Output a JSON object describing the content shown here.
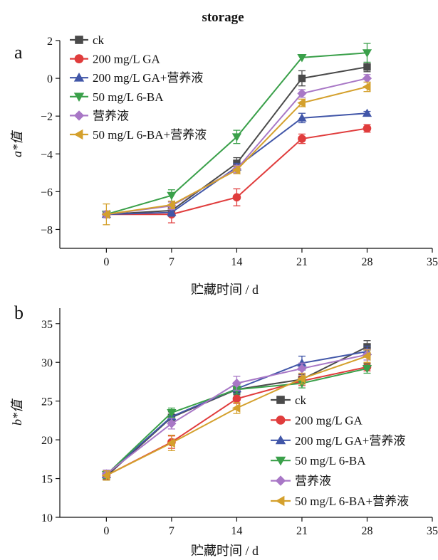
{
  "figure": {
    "title": "storage"
  },
  "series_styles": [
    {
      "name": "ck",
      "color": "#4a4a4a",
      "marker": "square"
    },
    {
      "name": "200 mg/L GA",
      "color": "#e03c3c",
      "marker": "circle"
    },
    {
      "name": "200 mg/L GA+营养液",
      "color": "#4156a8",
      "marker": "triangle-up"
    },
    {
      "name": "50 mg/L 6-BA",
      "color": "#3aa04a",
      "marker": "triangle-down"
    },
    {
      "name": "营养液",
      "color": "#a877c6",
      "marker": "diamond"
    },
    {
      "name": "50 mg/L 6-BA+营养液",
      "color": "#d4a02c",
      "marker": "triangle-left"
    }
  ],
  "chart_data": [
    {
      "type": "line",
      "panel_label": "a",
      "title": "storage",
      "xlabel": "贮藏时间 / d",
      "ylabel": "a*值",
      "x": [
        0,
        7,
        14,
        21,
        28
      ],
      "xlim": [
        -5,
        35
      ],
      "ylim": [
        -9,
        2
      ],
      "xticks": [
        0,
        7,
        14,
        21,
        28,
        35
      ],
      "yticks": [
        -8,
        -6,
        -4,
        -2,
        0,
        2
      ],
      "legend_position": "top-left",
      "grid": false,
      "series": [
        {
          "name": "ck",
          "values": [
            -7.2,
            -7.0,
            -4.5,
            0.0,
            0.6
          ],
          "errors": [
            0.15,
            0.2,
            0.3,
            0.4,
            0.25
          ]
        },
        {
          "name": "200 mg/L GA",
          "values": [
            -7.2,
            -7.2,
            -6.3,
            -3.2,
            -2.65
          ],
          "errors": [
            0.15,
            0.45,
            0.45,
            0.25,
            0.2
          ]
        },
        {
          "name": "200 mg/L GA+营养液",
          "values": [
            -7.2,
            -7.1,
            -4.7,
            -2.1,
            -1.85
          ],
          "errors": [
            0.15,
            0.2,
            0.2,
            0.25,
            0.1
          ]
        },
        {
          "name": "50 mg/L 6-BA",
          "values": [
            -7.2,
            -6.2,
            -3.1,
            1.1,
            1.35
          ],
          "errors": [
            0.15,
            0.3,
            0.35,
            0.0,
            0.5
          ]
        },
        {
          "name": "营养液",
          "values": [
            -7.2,
            -6.75,
            -4.8,
            -0.8,
            0.0
          ],
          "errors": [
            0.15,
            0.2,
            0.2,
            0.2,
            0.2
          ]
        },
        {
          "name": "50 mg/L 6-BA+营养液",
          "values": [
            -7.2,
            -6.7,
            -4.85,
            -1.3,
            -0.45
          ],
          "errors": [
            0.55,
            0.2,
            0.2,
            0.2,
            0.25
          ]
        }
      ]
    },
    {
      "type": "line",
      "panel_label": "b",
      "title": "",
      "xlabel": "贮藏时间 / d",
      "ylabel": "b*值",
      "x": [
        0,
        7,
        14,
        21,
        28
      ],
      "xlim": [
        -5,
        35
      ],
      "ylim": [
        10,
        37
      ],
      "xticks": [
        0,
        7,
        14,
        21,
        28,
        35
      ],
      "yticks": [
        10,
        15,
        20,
        25,
        30,
        35
      ],
      "legend_position": "bottom-right",
      "grid": false,
      "series": [
        {
          "name": "ck",
          "values": [
            15.3,
            22.9,
            26.5,
            27.8,
            32.0
          ],
          "errors": [
            0.5,
            0.7,
            0.7,
            0.6,
            0.8
          ]
        },
        {
          "name": "200 mg/L GA",
          "values": [
            15.4,
            19.7,
            25.3,
            27.6,
            29.4
          ],
          "errors": [
            0.5,
            0.8,
            0.6,
            0.6,
            0.5
          ]
        },
        {
          "name": "200 mg/L GA+营养液",
          "values": [
            15.5,
            23.0,
            26.6,
            29.9,
            31.4
          ],
          "errors": [
            0.5,
            0.7,
            0.6,
            0.9,
            0.7
          ]
        },
        {
          "name": "50 mg/L 6-BA",
          "values": [
            15.5,
            23.5,
            26.5,
            27.3,
            29.2
          ],
          "errors": [
            0.5,
            0.6,
            0.6,
            0.6,
            0.6
          ]
        },
        {
          "name": "营养液",
          "values": [
            15.6,
            22.1,
            27.3,
            29.2,
            31.0
          ],
          "errors": [
            0.5,
            0.7,
            0.9,
            0.7,
            0.7
          ]
        },
        {
          "name": "50 mg/L 6-BA+营养液",
          "values": [
            15.4,
            19.6,
            24.1,
            27.9,
            30.8
          ],
          "errors": [
            0.6,
            1.0,
            0.7,
            0.7,
            0.8
          ]
        }
      ]
    }
  ]
}
